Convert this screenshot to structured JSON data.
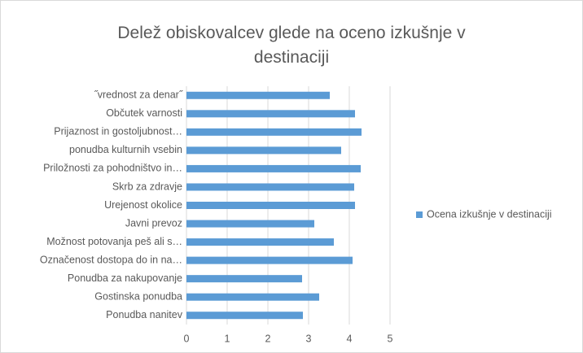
{
  "chart_data": {
    "type": "bar",
    "orientation": "horizontal",
    "title": "Delež obiskovalcev glede na oceno izkušnje v destinaciji",
    "categories": [
      "˝vrednost za denar˝",
      "Občutek varnosti",
      "Prijaznost in gostoljubnost…",
      "ponudba kulturnih vsebin",
      "Priložnosti za pohodništvo in…",
      "Skrb za zdravje",
      "Urejenost okolice",
      "Javni prevoz",
      "Možnost potovanja peš ali s…",
      "Označenost dostopa do in na…",
      "Ponudba za nakupovanje",
      "Gostinska ponudba",
      "Ponudba nanitev"
    ],
    "series": [
      {
        "name": "Ocena izkušnje v destinaciji",
        "color": "#5b9bd5",
        "values": [
          3.52,
          4.14,
          4.3,
          3.8,
          4.28,
          4.12,
          4.14,
          3.14,
          3.62,
          4.08,
          2.84,
          3.26,
          2.86
        ]
      }
    ],
    "xlim": [
      0,
      5
    ],
    "xticks": [
      0,
      1,
      2,
      3,
      4,
      5
    ],
    "grid": true,
    "legend": "right"
  }
}
